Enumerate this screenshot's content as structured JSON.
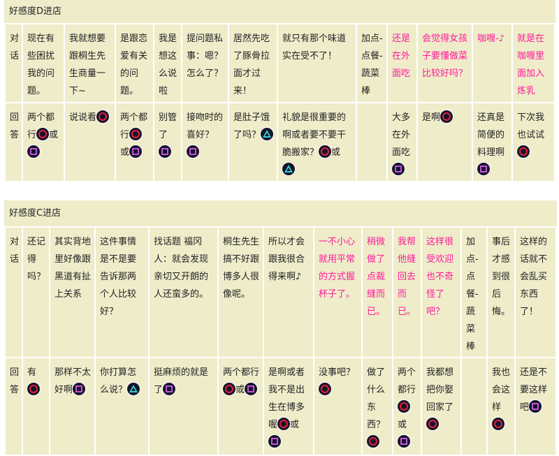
{
  "colors": {
    "background": "#efecca",
    "highlight_text": "#ff1a9a",
    "circle_button": "#e8203a",
    "square_button": "#c452d6",
    "triangle_button": "#2fd0d0"
  },
  "tables": [
    {
      "title": "好感度D进店",
      "row_labels": [
        "对话",
        "回答"
      ],
      "columns": [
        {
          "dialog": [
            {
              "t": "现在有些困扰我的问题。"
            }
          ],
          "answer": [
            {
              "t": "两个都行"
            },
            {
              "i": "circle"
            },
            {
              "t": "或"
            },
            {
              "i": "square"
            }
          ]
        },
        {
          "dialog": [
            {
              "t": "我就想要跟桐生先生商量一下~"
            }
          ],
          "answer": [
            {
              "t": "说说看"
            },
            {
              "i": "circle"
            }
          ]
        },
        {
          "dialog": [
            {
              "t": "是跟恋爱有关的问题。"
            }
          ],
          "answer": [
            {
              "t": "两个都行"
            },
            {
              "i": "circle"
            },
            {
              "t": "或"
            },
            {
              "i": "square"
            }
          ]
        },
        {
          "dialog": [
            {
              "t": "我是想这么说啦"
            }
          ],
          "answer": [
            {
              "t": "别管了"
            },
            {
              "i": "square"
            }
          ]
        },
        {
          "dialog": [
            {
              "t": "提问题私事：嗯？怎么了？"
            }
          ],
          "answer": [
            {
              "t": "接吻时的喜好？"
            },
            {
              "i": "square"
            }
          ]
        },
        {
          "dialog": [
            {
              "t": "居然先吃了豚骨拉面才过来！"
            }
          ],
          "answer": [
            {
              "t": "是肚子饿了吗？"
            },
            {
              "i": "triangle"
            }
          ]
        },
        {
          "dialog": [
            {
              "t": "就只有那个味道实在受不了！"
            }
          ],
          "answer": [
            {
              "t": "礼貌是很重要的啊或者要不要干脆搬家？"
            },
            {
              "i": "circle"
            },
            {
              "t": "或"
            },
            {
              "i": "triangle"
            }
          ]
        },
        {
          "dialog": [
            {
              "t": "加点-点餐-蔬菜棒"
            }
          ],
          "answer": []
        },
        {
          "pink": true,
          "dialog": [
            {
              "t": "还是在外面吃"
            }
          ],
          "answer": [
            {
              "t": "大多在外面吃"
            },
            {
              "i": "square"
            }
          ]
        },
        {
          "pink": true,
          "dialog": [
            {
              "t": "会觉得女孩子要懂做菜比较好吗？"
            }
          ],
          "answer": [
            {
              "t": "是啊"
            },
            {
              "i": "circle"
            }
          ]
        },
        {
          "pink": true,
          "dialog": [
            {
              "t": "咖喱-♪"
            }
          ],
          "answer": [
            {
              "t": "还真是简便的料理啊"
            },
            {
              "i": "square"
            }
          ]
        },
        {
          "pink": true,
          "dialog": [
            {
              "t": "就是在咖喱里面加入炼乳"
            }
          ],
          "answer": [
            {
              "t": "下次我也试试"
            },
            {
              "i": "circle"
            }
          ]
        }
      ]
    },
    {
      "title": "好感度C进店",
      "row_labels": [
        "对话",
        "回答"
      ],
      "columns": [
        {
          "dialog": [
            {
              "t": "还记得吗？"
            }
          ],
          "answer": [
            {
              "t": "有"
            },
            {
              "i": "circle"
            }
          ]
        },
        {
          "dialog": [
            {
              "t": "其实背地里好像跟黑道有扯上关系"
            }
          ],
          "answer": [
            {
              "t": "那样不太好啊"
            },
            {
              "i": "square"
            }
          ]
        },
        {
          "dialog": [
            {
              "t": "这件事情是不是要告诉那两个人比较好？"
            }
          ],
          "answer": [
            {
              "t": "你打算怎么说？"
            },
            {
              "i": "triangle"
            }
          ]
        },
        {
          "dialog": [
            {
              "t": "找话题 福冈人：就会发现亲切又开朗的人还蛮多的。"
            }
          ],
          "answer": [
            {
              "t": "挺麻烦的就是了"
            },
            {
              "i": "square"
            }
          ]
        },
        {
          "dialog": [
            {
              "t": "桐生先生搞不好跟博多人很像呢。"
            }
          ],
          "answer": [
            {
              "t": "两个都行"
            },
            {
              "i": "circle"
            },
            {
              "t": "或"
            },
            {
              "i": "square"
            }
          ]
        },
        {
          "dialog": [
            {
              "t": "所以才会跟我很合得来啊♪"
            }
          ],
          "answer": [
            {
              "t": "是啊或者我不是出生在博多喔"
            },
            {
              "i": "circle"
            },
            {
              "t": "或"
            },
            {
              "i": "square"
            }
          ]
        },
        {
          "pink": true,
          "dialog": [
            {
              "t": "一不小心就用平常的方式握杯子了。"
            }
          ],
          "answer": [
            {
              "t": "没事吧？"
            },
            {
              "i": "circle"
            }
          ]
        },
        {
          "pink": true,
          "dialog": [
            {
              "t": "稍微做了点裁缝而已。"
            }
          ],
          "answer": [
            {
              "t": "做了什么东西？"
            },
            {
              "i": "circle"
            }
          ]
        },
        {
          "pink": true,
          "dialog": [
            {
              "t": "我帮他缝回去而已。"
            }
          ],
          "answer": [
            {
              "t": "两个都行"
            },
            {
              "i": "circle"
            },
            {
              "t": "或"
            },
            {
              "i": "square"
            }
          ]
        },
        {
          "pink": true,
          "dialog": [
            {
              "t": "这样很受欢迎也不奇怪了吧？"
            }
          ],
          "answer": [
            {
              "t": "我都想把你娶回家了"
            },
            {
              "i": "circle"
            }
          ]
        },
        {
          "dialog": [
            {
              "t": "加点-点餐-蔬菜棒"
            }
          ],
          "answer": []
        },
        {
          "dialog": [
            {
              "t": "事后才感到很后悔。"
            }
          ],
          "answer": [
            {
              "t": "我也会这样"
            },
            {
              "i": "circle"
            }
          ]
        },
        {
          "dialog": [
            {
              "t": "这样的话就不会乱买东西了！"
            }
          ],
          "answer": [
            {
              "t": "还是不要这样吧"
            },
            {
              "i": "square"
            }
          ]
        }
      ]
    }
  ]
}
